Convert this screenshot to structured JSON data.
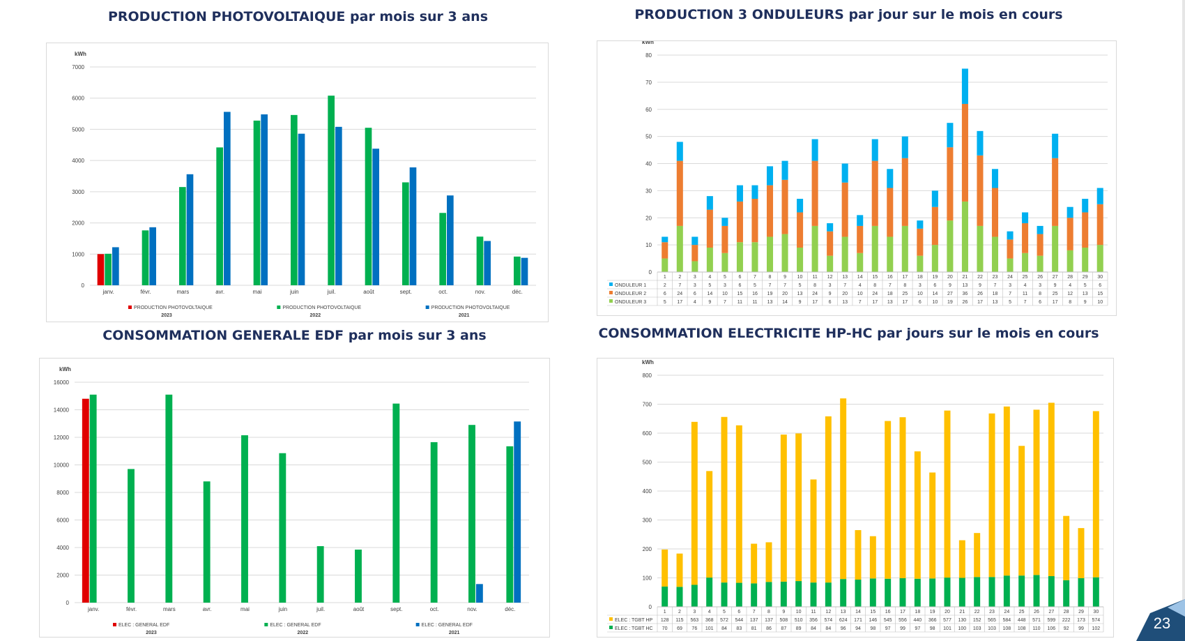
{
  "page_number": "23",
  "colors": {
    "red": "#e00000",
    "green": "#00b050",
    "blue": "#0070c0",
    "onduleur1": "#00b0f0",
    "onduleur2": "#ed7d31",
    "onduleur3": "#92d050",
    "hp": "#ffc000",
    "hc": "#00b050"
  },
  "chart_data": [
    {
      "type": "bar",
      "title": "PRODUCTION PHOTOVOLTAIQUE par mois sur 3 ans",
      "ylabel": "kWh",
      "ylim": [
        0,
        7000
      ],
      "yticks": [
        "0",
        "1000",
        "2000",
        "3000",
        "4000",
        "5000",
        "6000",
        "7000"
      ],
      "categories": [
        "janv.",
        "févr.",
        "mars",
        "avr.",
        "mai",
        "juin",
        "juil.",
        "août",
        "sept.",
        "oct.",
        "nov.",
        "déc."
      ],
      "series": [
        {
          "name": "PRODUCTION PHOTOVOLTAIQUE",
          "year": "2023",
          "color": "#e00000",
          "values": [
            1000,
            null,
            null,
            null,
            null,
            null,
            null,
            null,
            null,
            null,
            null,
            null
          ]
        },
        {
          "name": "PRODUCTION PHOTOVOLTAIQUE",
          "year": "2022",
          "color": "#00b050",
          "values": [
            1010,
            1760,
            3150,
            4420,
            5280,
            5460,
            6080,
            5050,
            3300,
            2320,
            1560,
            920
          ]
        },
        {
          "name": "PRODUCTION PHOTOVOLTAIQUE",
          "year": "2021",
          "color": "#0070c0",
          "values": [
            1220,
            1860,
            3560,
            5560,
            5480,
            4860,
            5080,
            4380,
            3780,
            2880,
            1420,
            880
          ]
        }
      ],
      "legend": "bottom",
      "grid": true
    },
    {
      "type": "bar",
      "stacked": true,
      "title": "PRODUCTION 3 ONDULEURS par jour sur le mois en cours",
      "ylabel": "kWh",
      "ylim": [
        0,
        80
      ],
      "yticks": [
        "0",
        "10",
        "20",
        "30",
        "40",
        "50",
        "60",
        "70",
        "80"
      ],
      "categories": [
        "1",
        "2",
        "3",
        "4",
        "5",
        "6",
        "7",
        "8",
        "9",
        "10",
        "11",
        "12",
        "13",
        "14",
        "15",
        "16",
        "17",
        "18",
        "19",
        "20",
        "21",
        "22",
        "23",
        "24",
        "25",
        "26",
        "27",
        "28",
        "29",
        "30"
      ],
      "series": [
        {
          "name": "ONDULEUR 3",
          "color": "#92d050",
          "values": [
            5,
            17,
            4,
            9,
            7,
            11,
            11,
            13,
            14,
            9,
            17,
            6,
            13,
            7,
            17,
            13,
            17,
            6,
            10,
            19,
            26,
            17,
            13,
            5,
            7,
            6,
            17,
            8,
            9,
            10
          ],
          "labels": [
            "5",
            "17",
            "4",
            "9",
            "7",
            "11",
            "11",
            "13",
            "14",
            "9",
            "17",
            "6",
            "13",
            "7",
            "17",
            "13",
            "17",
            "6",
            "10",
            "19",
            "26",
            "17",
            "13",
            "5",
            "7",
            "6",
            "17",
            "8",
            "9",
            "10"
          ]
        },
        {
          "name": "ONDULEUR 2",
          "color": "#ed7d31",
          "values": [
            6,
            24,
            6,
            14,
            10,
            15,
            16,
            19,
            20,
            13,
            24,
            9,
            20,
            10,
            24,
            18,
            25,
            10,
            14,
            27,
            36,
            26,
            18,
            7,
            11,
            8,
            25,
            12,
            13,
            15
          ],
          "labels": [
            "6",
            "24",
            "6",
            "14",
            "10",
            "15",
            "16",
            "19",
            "20",
            "13",
            "24",
            "9",
            "20",
            "10",
            "24",
            "18",
            "25",
            "10",
            "14",
            "27",
            "36",
            "26",
            "18",
            "7",
            "11",
            "8",
            "25",
            "12",
            "13",
            "15"
          ]
        },
        {
          "name": "ONDULEUR 1",
          "color": "#00b0f0",
          "values": [
            2,
            7,
            3,
            5,
            3,
            6,
            5,
            7,
            7,
            5,
            8,
            3,
            7,
            4,
            8,
            7,
            8,
            3,
            6,
            9,
            13,
            9,
            7,
            3,
            4,
            3,
            9,
            4,
            5,
            6
          ],
          "labels": [
            "2",
            "7",
            "3",
            "5",
            "3",
            "6",
            "5",
            "7",
            "7",
            "5",
            "8",
            "3",
            "7",
            "4",
            "8",
            "7",
            "8",
            "3",
            "6",
            "9",
            "13",
            "9",
            "7",
            "3",
            "4",
            "3",
            "9",
            "4",
            "5",
            "6"
          ]
        }
      ],
      "table_order": [
        "ONDULEUR 1",
        "ONDULEUR 2",
        "ONDULEUR 3"
      ],
      "grid": true
    },
    {
      "type": "bar",
      "title": "CONSOMMATION GENERALE EDF par mois sur 3 ans",
      "ylabel": "kWh",
      "ylim": [
        0,
        16000
      ],
      "yticks": [
        "0",
        "2000",
        "4000",
        "6000",
        "8000",
        "10000",
        "12000",
        "14000",
        "16000"
      ],
      "categories": [
        "janv.",
        "févr.",
        "mars",
        "avr.",
        "mai",
        "juin",
        "juil.",
        "août",
        "sept.",
        "oct.",
        "nov.",
        "déc."
      ],
      "series": [
        {
          "name": "ELEC : GENERAL EDF",
          "year": "2023",
          "color": "#e00000",
          "values": [
            14800,
            null,
            null,
            null,
            null,
            null,
            null,
            null,
            null,
            null,
            null,
            null
          ]
        },
        {
          "name": "ELEC : GENERAL EDF",
          "year": "2022",
          "color": "#00b050",
          "values": [
            15100,
            9700,
            15100,
            8800,
            12150,
            10850,
            4100,
            3850,
            14450,
            11650,
            12900,
            11350
          ]
        },
        {
          "name": "ELEC : GENERAL EDF",
          "year": "2021",
          "color": "#0070c0",
          "values": [
            null,
            null,
            null,
            null,
            null,
            null,
            null,
            null,
            null,
            null,
            1350,
            13150
          ]
        }
      ],
      "legend": "bottom",
      "grid": true
    },
    {
      "type": "bar",
      "stacked": true,
      "title": "CONSOMMATION ELECTRICITE HP-HC par jours sur le mois en cours",
      "ylabel": "kWh",
      "ylim": [
        0,
        800
      ],
      "yticks": [
        "0",
        "100",
        "200",
        "300",
        "400",
        "500",
        "600",
        "700",
        "800"
      ],
      "categories": [
        "1",
        "2",
        "3",
        "4",
        "5",
        "6",
        "7",
        "8",
        "9",
        "10",
        "11",
        "12",
        "13",
        "14",
        "15",
        "16",
        "17",
        "18",
        "19",
        "20",
        "21",
        "22",
        "23",
        "24",
        "25",
        "26",
        "27",
        "28",
        "29",
        "30"
      ],
      "series": [
        {
          "name": "ELEC : TGBT HC",
          "color": "#00b050",
          "values": [
            70,
            69,
            76,
            101,
            84,
            83,
            81,
            86,
            87,
            89,
            84,
            84,
            96,
            94,
            98,
            97,
            99,
            97,
            98,
            101,
            100,
            103,
            103,
            108,
            108,
            110,
            106,
            92,
            99,
            102
          ],
          "labels": [
            "70",
            "69",
            "76",
            "101",
            "84",
            "83",
            "81",
            "86",
            "87",
            "89",
            "84",
            "84",
            "96",
            "94",
            "98",
            "97",
            "99",
            "97",
            "98",
            "101",
            "100",
            "103",
            "103",
            "108",
            "108",
            "110",
            "106",
            "92",
            "99",
            "102"
          ]
        },
        {
          "name": "ELEC : TGBT HP",
          "color": "#ffc000",
          "values": [
            128,
            115,
            563,
            368,
            572,
            544,
            137,
            137,
            508,
            510,
            356,
            574,
            624,
            171,
            146,
            545,
            556,
            440,
            366,
            577,
            130,
            152,
            565,
            584,
            448,
            571,
            599,
            222,
            173,
            574
          ],
          "labels": [
            "128",
            "115",
            "563",
            "368",
            "572",
            "544",
            "137",
            "137",
            "508",
            "510",
            "356",
            "574",
            "624",
            "171",
            "146",
            "545",
            "556",
            "440",
            "366",
            "577",
            "130",
            "152",
            "565",
            "584",
            "448",
            "571",
            "599",
            "222",
            "173",
            "574"
          ]
        }
      ],
      "table_order": [
        "ELEC : TGBT HP",
        "ELEC : TGBT HC"
      ],
      "grid": true
    }
  ]
}
